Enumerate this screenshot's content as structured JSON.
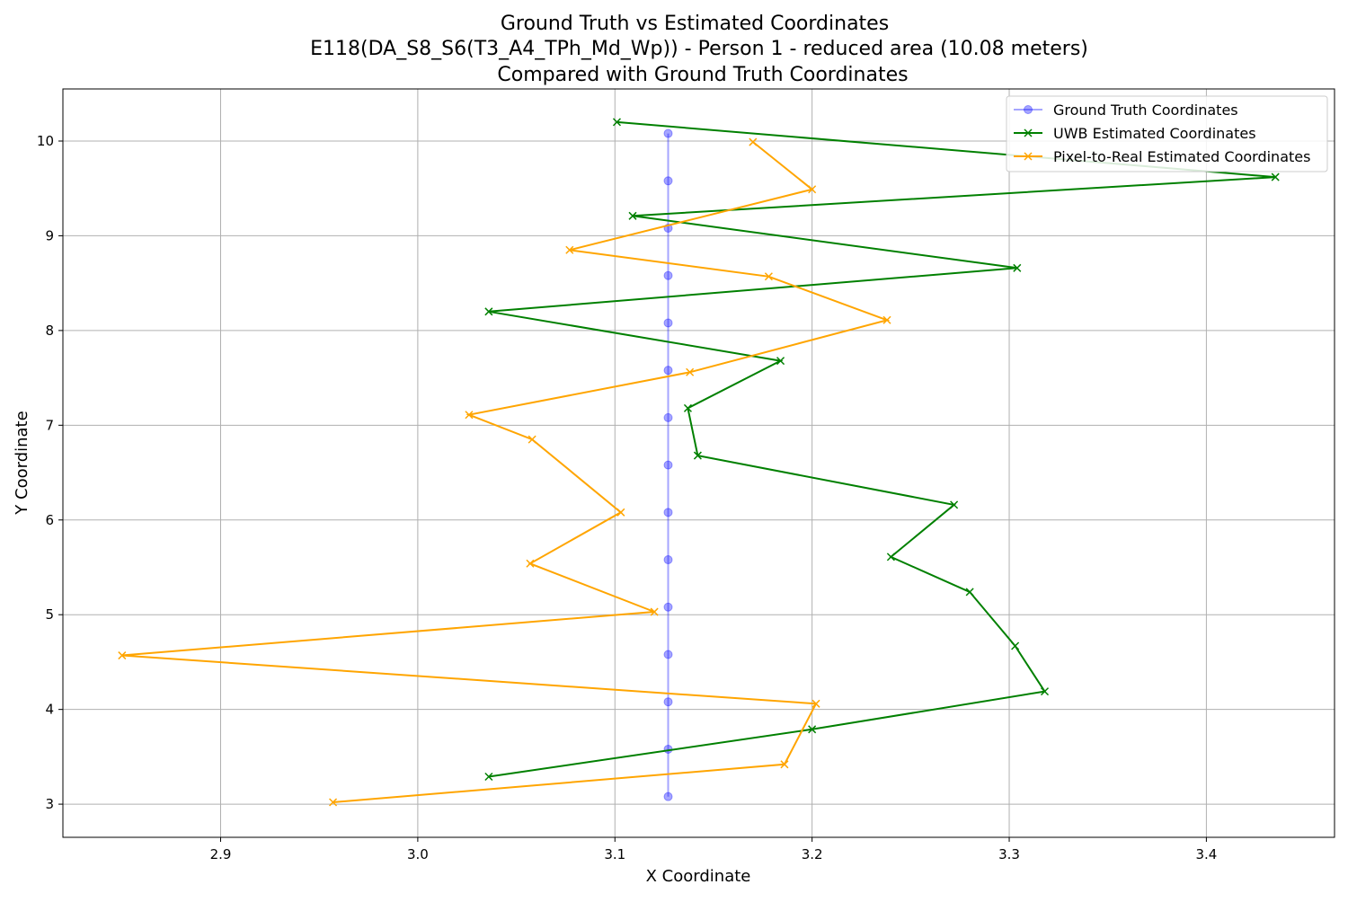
{
  "chart_data": {
    "type": "line",
    "title_lines": [
      "Ground Truth vs Estimated Coordinates",
      "E118(DA_S8_S6(T3_A4_TPh_Md_Wp)) - Person 1 - reduced area (10.08 meters)",
      "Compared with Ground Truth Coordinates"
    ],
    "xlabel": "X Coordinate",
    "ylabel": "Y Coordinate",
    "xlim": [
      2.82,
      3.465
    ],
    "ylim": [
      2.65,
      10.55
    ],
    "xticks": [
      2.9,
      3.0,
      3.1,
      3.2,
      3.3,
      3.4
    ],
    "xtick_labels": [
      "2.9",
      "3.0",
      "3.1",
      "3.2",
      "3.3",
      "3.4"
    ],
    "yticks": [
      3,
      4,
      5,
      6,
      7,
      8,
      9,
      10
    ],
    "ytick_labels": [
      "3",
      "4",
      "5",
      "6",
      "7",
      "8",
      "9",
      "10"
    ],
    "grid": true,
    "legend_position": "top-right",
    "series": [
      {
        "name": "Ground Truth Coordinates",
        "color": "#0000ff",
        "opacity": 0.35,
        "marker": "circle",
        "x": [
          3.127,
          3.127,
          3.127,
          3.127,
          3.127,
          3.127,
          3.127,
          3.127,
          3.127,
          3.127,
          3.127,
          3.127,
          3.127,
          3.127,
          3.127
        ],
        "y": [
          3.08,
          3.58,
          4.08,
          4.58,
          5.08,
          5.58,
          6.08,
          6.58,
          7.08,
          7.58,
          8.08,
          8.58,
          9.08,
          9.58,
          10.08
        ]
      },
      {
        "name": "UWB Estimated Coordinates",
        "color": "#008000",
        "opacity": 1,
        "marker": "x",
        "x": [
          3.036,
          3.2,
          3.318,
          3.303,
          3.28,
          3.24,
          3.272,
          3.142,
          3.137,
          3.184,
          3.036,
          3.304,
          3.109,
          3.435,
          3.101
        ],
        "y": [
          3.29,
          3.79,
          4.19,
          4.67,
          5.24,
          5.61,
          6.16,
          6.68,
          7.18,
          7.68,
          8.2,
          8.66,
          9.21,
          9.62,
          10.2
        ]
      },
      {
        "name": "Pixel-to-Real Estimated Coordinates",
        "color": "#ffa500",
        "opacity": 1,
        "marker": "x",
        "x": [
          2.957,
          3.186,
          3.202,
          2.85,
          3.12,
          3.057,
          3.103,
          3.058,
          3.026,
          3.138,
          3.238,
          3.178,
          3.077,
          3.2,
          3.17
        ],
        "y": [
          3.02,
          3.42,
          4.06,
          4.57,
          5.03,
          5.54,
          6.08,
          6.85,
          7.11,
          7.56,
          8.11,
          8.57,
          8.85,
          9.49,
          9.99
        ]
      }
    ]
  }
}
